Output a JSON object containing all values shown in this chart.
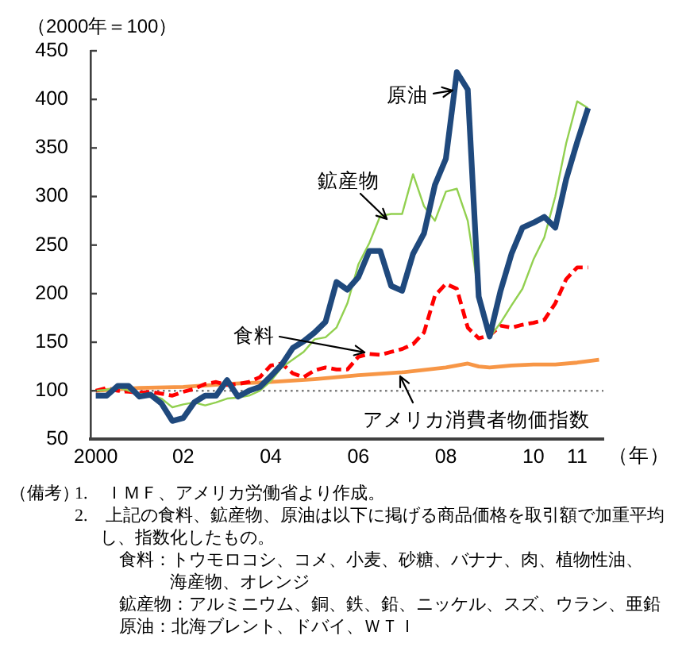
{
  "chart_data": {
    "type": "line",
    "xlabel": "（年）",
    "ylabel": "（2000年＝100）",
    "x": [
      2000,
      2000.25,
      2000.5,
      2000.75,
      2001,
      2001.25,
      2001.5,
      2001.75,
      2002,
      2002.25,
      2002.5,
      2002.75,
      2003,
      2003.25,
      2003.5,
      2003.75,
      2004,
      2004.25,
      2004.5,
      2004.75,
      2005,
      2005.25,
      2005.5,
      2005.75,
      2006,
      2006.25,
      2006.5,
      2006.75,
      2007,
      2007.25,
      2007.5,
      2007.75,
      2008,
      2008.25,
      2008.5,
      2008.75,
      2009,
      2009.25,
      2009.5,
      2009.75,
      2010,
      2010.25,
      2010.5,
      2010.75,
      2011,
      2011.25
    ],
    "series": [
      {
        "name": "原油",
        "color": "#1f497d",
        "line_style": "solid",
        "values": [
          95,
          95,
          105,
          105,
          94,
          96,
          87,
          69,
          72,
          88,
          95,
          95,
          111,
          94,
          100,
          104,
          115,
          127,
          144,
          151,
          160,
          171,
          212,
          204,
          217,
          244,
          244,
          208,
          203,
          241,
          262,
          312,
          339,
          428,
          410,
          197,
          156,
          203,
          241,
          268,
          273,
          279,
          268,
          318,
          356,
          391
        ]
      },
      {
        "name": "鉱産物",
        "color": "#92d050",
        "line_style": "solid",
        "values": [
          100,
          101,
          104,
          100,
          97,
          96,
          92,
          83,
          86,
          88,
          85,
          88,
          92,
          93,
          95,
          100,
          110,
          124,
          132,
          140,
          153,
          155,
          165,
          190,
          230,
          252,
          280,
          282,
          282,
          323,
          290,
          275,
          305,
          308,
          275,
          200,
          155,
          170,
          188,
          205,
          235,
          258,
          300,
          355,
          398,
          391
        ]
      },
      {
        "name": "食料",
        "color": "#ff0000",
        "line_style": "dashed",
        "values": [
          100,
          103,
          100,
          99,
          98,
          99,
          97,
          95,
          99,
          102,
          107,
          109,
          106,
          107,
          109,
          114,
          126,
          128,
          118,
          114,
          121,
          124,
          122,
          122,
          135,
          138,
          137,
          140,
          143,
          148,
          160,
          198,
          210,
          205,
          165,
          154,
          157,
          167,
          165,
          168,
          170,
          173,
          190,
          215,
          227,
          227
        ]
      },
      {
        "name": "アメリカ消費者物価指数",
        "color": "#f79646",
        "line_style": "solid",
        "x": [
          2000,
          2001,
          2002,
          2003,
          2004,
          2005,
          2006,
          2007,
          2008,
          2008.5,
          2008.75,
          2009,
          2009.5,
          2010,
          2010.5,
          2011,
          2011.5
        ],
        "values": [
          100,
          103,
          104,
          107,
          109,
          112,
          116,
          119,
          124,
          128,
          125,
          124,
          126,
          127,
          127,
          129,
          132
        ]
      }
    ],
    "xlim": [
      1999.88,
      2011.6
    ],
    "xticks": [
      {
        "value": 2000,
        "label": "2000"
      },
      {
        "value": 2002,
        "label": "02"
      },
      {
        "value": 2004,
        "label": "04"
      },
      {
        "value": 2006,
        "label": "06"
      },
      {
        "value": 2008,
        "label": "08"
      },
      {
        "value": 2010,
        "label": "10"
      },
      {
        "value": 2011,
        "label": "11"
      }
    ],
    "ylim": [
      50,
      450
    ],
    "yticks": [
      50,
      100,
      150,
      200,
      250,
      300,
      350,
      400,
      450
    ],
    "ref_lines": [
      {
        "axis": "y",
        "value": 100,
        "color": "#7f7f7f",
        "line_style": "dotted"
      }
    ],
    "legend": false,
    "marker": "none",
    "annotations": [
      "（備考）",
      "1.　ＩＭＦ、アメリカ労働省より作成。",
      "2.　上記の食料、鉱産物、原油は以下に掲げる商品価格を取引額で加重平均し、指数化したもの。",
      "食料：トウモロコシ、コメ、小麦、砂糖、バナナ、肉、植物性油、海産物、オレンジ",
      "鉱産物：アルミニウム、銅、鉄、鉛、ニッケル、スズ、ウラン、亜鉛",
      "原油：北海ブレント、ドバイ、ＷＴＩ"
    ]
  }
}
